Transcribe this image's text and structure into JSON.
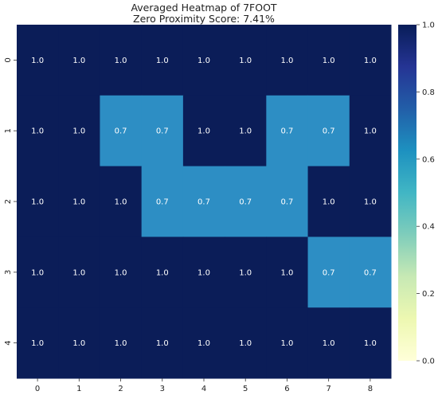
{
  "chart_data": {
    "type": "heatmap",
    "title": "Averaged Heatmap of 7FOOT",
    "subtitle": "Zero Proximity Score: 7.41%",
    "x_categories": [
      "0",
      "1",
      "2",
      "3",
      "4",
      "5",
      "6",
      "7",
      "8"
    ],
    "y_categories": [
      "0",
      "1",
      "2",
      "3",
      "4"
    ],
    "values": [
      [
        1.0,
        1.0,
        1.0,
        1.0,
        1.0,
        1.0,
        1.0,
        1.0,
        1.0
      ],
      [
        1.0,
        1.0,
        0.7,
        0.7,
        1.0,
        1.0,
        0.7,
        0.7,
        1.0
      ],
      [
        1.0,
        1.0,
        1.0,
        0.7,
        0.7,
        0.7,
        0.7,
        1.0,
        1.0
      ],
      [
        1.0,
        1.0,
        1.0,
        1.0,
        1.0,
        1.0,
        1.0,
        0.7,
        0.7
      ],
      [
        1.0,
        1.0,
        1.0,
        1.0,
        1.0,
        1.0,
        1.0,
        1.0,
        1.0
      ]
    ],
    "cell_labels": [
      [
        "1.0",
        "1.0",
        "1.0",
        "1.0",
        "1.0",
        "1.0",
        "1.0",
        "1.0",
        "1.0"
      ],
      [
        "1.0",
        "1.0",
        "0.7",
        "0.7",
        "1.0",
        "1.0",
        "0.7",
        "0.7",
        "1.0"
      ],
      [
        "1.0",
        "1.0",
        "1.0",
        "0.7",
        "0.7",
        "0.7",
        "0.7",
        "1.0",
        "1.0"
      ],
      [
        "1.0",
        "1.0",
        "1.0",
        "1.0",
        "1.0",
        "1.0",
        "1.0",
        "0.7",
        "0.7"
      ],
      [
        "1.0",
        "1.0",
        "1.0",
        "1.0",
        "1.0",
        "1.0",
        "1.0",
        "1.0",
        "1.0"
      ]
    ],
    "colorbar": {
      "range": [
        0.0,
        1.0
      ],
      "ticks": [
        "0.0",
        "0.2",
        "0.4",
        "0.6",
        "0.8",
        "1.0"
      ],
      "colormap": [
        "#ffffd9",
        "#edf8b1",
        "#c7e9b4",
        "#7fcdbb",
        "#41b6c4",
        "#1d91c0",
        "#225ea8",
        "#253494",
        "#081d58"
      ]
    },
    "colors": {
      "high": "#0b1d58",
      "mid": "#2d8ec4"
    },
    "xlabel": "",
    "ylabel": "",
    "grid": false
  }
}
